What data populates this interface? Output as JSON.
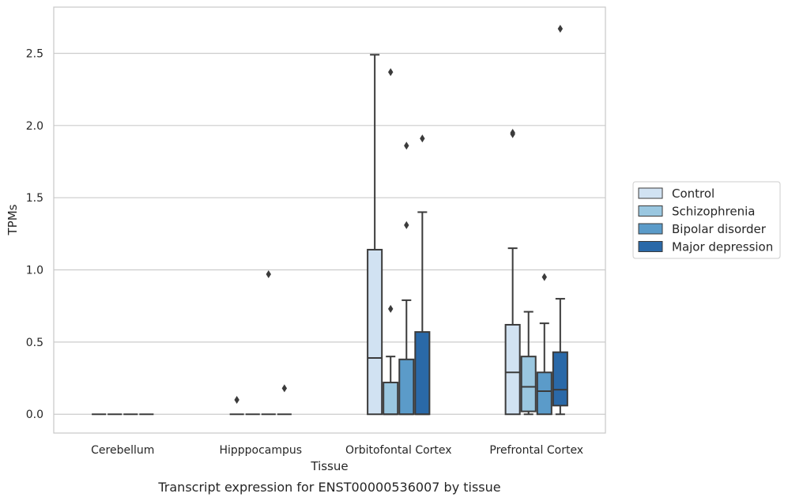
{
  "chart_data": {
    "type": "box",
    "caption": "Transcript expression for ENST00000536007 by tissue",
    "xlabel": "Tissue",
    "ylabel": "TPMs",
    "ylim": [
      -0.13,
      2.82
    ],
    "yticks": [
      "0.0",
      "0.5",
      "1.0",
      "1.5",
      "2.0",
      "2.5"
    ],
    "ytick_values": [
      0,
      0.5,
      1.0,
      1.5,
      2.0,
      2.5
    ],
    "grid": "horizontal",
    "legend_position": "right",
    "categories": [
      "Cerebellum",
      "Hipppocampus",
      "Orbitofontal Cortex",
      "Prefrontal Cortex"
    ],
    "series": [
      {
        "name": "Control",
        "color": "#d1e2f2",
        "boxes": [
          {
            "whisker_low": 0,
            "q1": 0,
            "median": 0,
            "q3": 0,
            "whisker_high": 0,
            "outliers": []
          },
          {
            "whisker_low": 0,
            "q1": 0,
            "median": 0,
            "q3": 0,
            "whisker_high": 0,
            "outliers": [
              0.1
            ]
          },
          {
            "whisker_low": 0,
            "q1": 0,
            "median": 0.39,
            "q3": 1.14,
            "whisker_high": 2.49,
            "outliers": []
          },
          {
            "whisker_low": 0,
            "q1": 0,
            "median": 0.29,
            "q3": 0.62,
            "whisker_high": 1.15,
            "outliers": [
              1.94,
              1.95
            ]
          }
        ]
      },
      {
        "name": "Schizophrenia",
        "color": "#9ac7e0",
        "boxes": [
          {
            "whisker_low": 0,
            "q1": 0,
            "median": 0,
            "q3": 0,
            "whisker_high": 0,
            "outliers": []
          },
          {
            "whisker_low": 0,
            "q1": 0,
            "median": 0,
            "q3": 0,
            "whisker_high": 0,
            "outliers": []
          },
          {
            "whisker_low": 0,
            "q1": 0,
            "median": 0,
            "q3": 0.22,
            "whisker_high": 0.4,
            "outliers": [
              0.73,
              2.37
            ]
          },
          {
            "whisker_low": 0,
            "q1": 0.02,
            "median": 0.19,
            "q3": 0.4,
            "whisker_high": 0.71,
            "outliers": []
          }
        ]
      },
      {
        "name": "Bipolar disorder",
        "color": "#5b9bc9",
        "boxes": [
          {
            "whisker_low": 0,
            "q1": 0,
            "median": 0,
            "q3": 0,
            "whisker_high": 0,
            "outliers": []
          },
          {
            "whisker_low": 0,
            "q1": 0,
            "median": 0,
            "q3": 0,
            "whisker_high": 0,
            "outliers": [
              0.97
            ]
          },
          {
            "whisker_low": 0,
            "q1": 0,
            "median": 0,
            "q3": 0.38,
            "whisker_high": 0.79,
            "outliers": [
              1.31,
              1.86
            ]
          },
          {
            "whisker_low": 0,
            "q1": 0,
            "median": 0.16,
            "q3": 0.29,
            "whisker_high": 0.63,
            "outliers": [
              0.95
            ]
          }
        ]
      },
      {
        "name": "Major depression",
        "color": "#2a69a8",
        "boxes": [
          {
            "whisker_low": 0,
            "q1": 0,
            "median": 0,
            "q3": 0,
            "whisker_high": 0,
            "outliers": []
          },
          {
            "whisker_low": 0,
            "q1": 0,
            "median": 0,
            "q3": 0,
            "whisker_high": 0,
            "outliers": [
              0.18
            ]
          },
          {
            "whisker_low": 0,
            "q1": 0,
            "median": 0,
            "q3": 0.57,
            "whisker_high": 1.4,
            "outliers": [
              1.91
            ]
          },
          {
            "whisker_low": 0,
            "q1": 0.06,
            "median": 0.17,
            "q3": 0.43,
            "whisker_high": 0.8,
            "outliers": [
              2.67
            ]
          }
        ]
      }
    ]
  },
  "colors": {
    "edge": "#3b3b3b",
    "grid": "#cccccc",
    "frame": "#c8c8c8"
  }
}
